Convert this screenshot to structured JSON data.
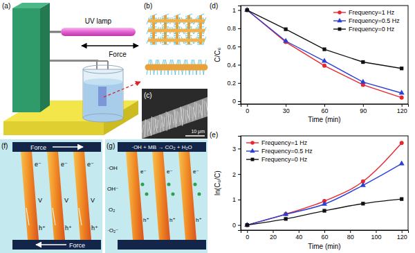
{
  "panels": {
    "a": {
      "label": "(a)",
      "lamp": "UV lamp",
      "force": "Force"
    },
    "b": {
      "label": "(b)"
    },
    "c": {
      "label": "(c)",
      "scale_bar": "10 μm"
    },
    "d": {
      "label": "(d)"
    },
    "e": {
      "label": "(e)"
    },
    "f": {
      "label": "(f)",
      "force": "Force",
      "hole": "h⁺",
      "electron": "e⁻",
      "vacancy": "V"
    },
    "g": {
      "label": "(g)",
      "reaction": "·OH + MB → CO₂ + H₂O",
      "hydroxyl": "·OH",
      "hydroxide": "OH⁻",
      "oxygen": "O₂",
      "superoxide": "·O₂⁻",
      "electron": "e⁻",
      "hole": "h⁺"
    }
  },
  "chart_data": [
    {
      "type": "line",
      "x_label": "Time (min)",
      "y_label": "C/C₀",
      "x": [
        0,
        30,
        60,
        90,
        120
      ],
      "series": [
        {
          "name": "Frequency=1 Hz",
          "color": "#e8262f",
          "marker": "circle",
          "values": [
            1,
            0.65,
            0.39,
            0.18,
            0.04
          ]
        },
        {
          "name": "Frequency=0.5 Hz",
          "color": "#2a3fd6",
          "marker": "triangle",
          "values": [
            1,
            0.66,
            0.44,
            0.21,
            0.09
          ]
        },
        {
          "name": "Frequency=0 Hz",
          "color": "#111111",
          "marker": "square",
          "values": [
            1,
            0.79,
            0.57,
            0.43,
            0.36
          ]
        }
      ],
      "xlim": [
        -5,
        125
      ],
      "ylim": [
        -0.03,
        1.05
      ],
      "xticks": [
        0,
        30,
        60,
        90,
        120
      ],
      "yticks": [
        0,
        0.2,
        0.4,
        0.6,
        0.8,
        1
      ],
      "legend": "upper right",
      "grid": false
    },
    {
      "type": "line",
      "x_label": "Time (min)",
      "y_label": "ln(C₀/C)",
      "x": [
        0,
        30,
        60,
        90,
        120
      ],
      "series": [
        {
          "name": "Frequency=1 Hz",
          "color": "#e8262f",
          "marker": "circle",
          "values": [
            0,
            0.43,
            0.94,
            1.71,
            3.22
          ]
        },
        {
          "name": "Frequency=0.5 Hz",
          "color": "#2a3fd6",
          "marker": "triangle",
          "values": [
            0,
            0.42,
            0.82,
            1.56,
            2.41
          ]
        },
        {
          "name": "Frequency=0 Hz",
          "color": "#111111",
          "marker": "square",
          "values": [
            0,
            0.24,
            0.56,
            0.84,
            1.02
          ]
        }
      ],
      "xlim": [
        -5,
        125
      ],
      "ylim": [
        -0.2,
        3.5
      ],
      "xticks": [
        0,
        20,
        40,
        60,
        80,
        100,
        120
      ],
      "yticks": [
        0,
        1,
        2,
        3
      ],
      "legend": "upper left",
      "grid": false
    }
  ]
}
